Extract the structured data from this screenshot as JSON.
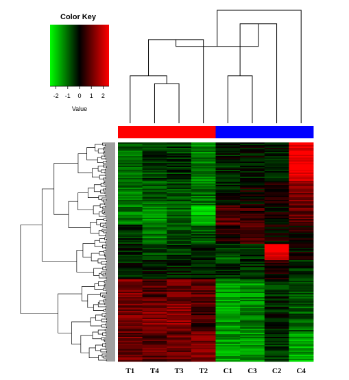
{
  "color_key": {
    "title": "Color Key",
    "axis_label": "Value",
    "ticks": [
      "-2",
      "-1",
      "0",
      "1",
      "2"
    ],
    "tick_values": [
      -2,
      -1,
      0,
      1,
      2
    ],
    "range": [
      -2.5,
      2.5
    ],
    "colors": {
      "low": "#00ff00",
      "mid": "#000000",
      "high": "#ff0000"
    }
  },
  "chart_data": {
    "type": "heatmap",
    "columns": [
      "T1",
      "T4",
      "T3",
      "T2",
      "C1",
      "C3",
      "C2",
      "C4"
    ],
    "column_groups": [
      "#ff0000",
      "#ff0000",
      "#ff0000",
      "#ff0000",
      "#0000ff",
      "#0000ff",
      "#0000ff",
      "#0000ff"
    ],
    "column_dendrogram_heights": [
      0.35,
      0.42,
      0.74,
      0.88,
      0.42,
      0.68,
      1.0
    ],
    "row_blocks": [
      {
        "rows": 28,
        "values": [
          -1.0,
          -0.6,
          -0.5,
          -1.3,
          -0.3,
          -0.2,
          -0.2,
          2.4
        ]
      },
      {
        "rows": 18,
        "values": [
          -1.1,
          -0.9,
          -0.8,
          -1.1,
          -0.2,
          0.1,
          0.4,
          1.2
        ]
      },
      {
        "rows": 14,
        "values": [
          -1.2,
          -1.3,
          -1.0,
          -1.8,
          0.9,
          0.5,
          0.1,
          1.0
        ]
      },
      {
        "rows": 14,
        "values": [
          -0.5,
          -1.2,
          -0.8,
          -0.8,
          0.4,
          0.6,
          0.1,
          0.2
        ]
      },
      {
        "rows": 12,
        "values": [
          -0.4,
          -0.7,
          -0.6,
          -0.5,
          -0.8,
          -0.5,
          2.4,
          0.0
        ]
      },
      {
        "rows": 14,
        "values": [
          -0.3,
          -0.2,
          -0.3,
          -0.4,
          -0.5,
          -0.4,
          0.2,
          -0.3
        ]
      },
      {
        "rows": 18,
        "values": [
          1.2,
          0.8,
          1.0,
          0.9,
          -1.6,
          -1.4,
          -0.4,
          -0.8
        ]
      },
      {
        "rows": 20,
        "values": [
          1.1,
          1.3,
          1.4,
          0.6,
          -1.5,
          -1.2,
          -0.3,
          -0.9
        ]
      },
      {
        "rows": 22,
        "values": [
          1.0,
          0.9,
          1.0,
          1.1,
          -1.5,
          -1.5,
          -0.4,
          -1.6
        ]
      }
    ],
    "color_scale": {
      "min": -2.5,
      "max": 2.5
    }
  }
}
